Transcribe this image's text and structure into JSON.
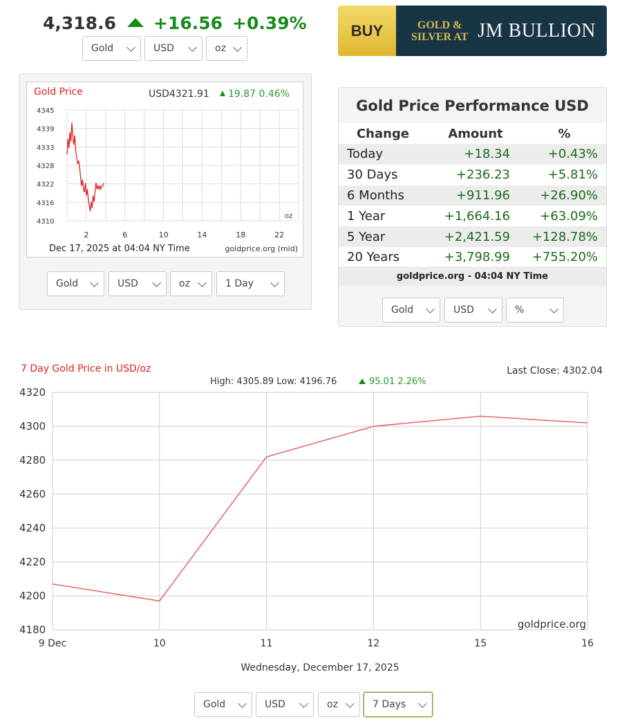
{
  "header": {
    "price": "4,318.6",
    "change": "+16.56",
    "change_pct": "+0.39%",
    "selectors": [
      "Gold",
      "USD",
      "oz"
    ]
  },
  "banner": {
    "buy": "BUY",
    "line1": "Gold &",
    "line2": "Silver At",
    "brand": "JM Bullion"
  },
  "mini_chart": {
    "title": "Gold Price",
    "quote": "USD4321.91",
    "change": "19.87 0.46%",
    "unit": "oz",
    "timestamp": "Dec 17, 2025 at 04:04 NY Time",
    "source": "goldprice.org (mid)",
    "selectors": [
      "Gold",
      "USD",
      "oz",
      "1 Day"
    ]
  },
  "performance": {
    "title": "Gold Price Performance USD",
    "headers": [
      "Change",
      "Amount",
      "%"
    ],
    "rows": [
      [
        "Today",
        "+18.34",
        "+0.43%"
      ],
      [
        "30 Days",
        "+236.23",
        "+5.81%"
      ],
      [
        "6 Months",
        "+911.96",
        "+26.90%"
      ],
      [
        "1 Year",
        "+1,664.16",
        "+63.09%"
      ],
      [
        "5 Year",
        "+2,421.59",
        "+128.78%"
      ],
      [
        "20 Years",
        "+3,798.99",
        "+755.20%"
      ]
    ],
    "footer": "goldprice.org - 04:04 NY Time",
    "selectors": [
      "Gold",
      "USD",
      "%"
    ]
  },
  "big_chart": {
    "title": "7 Day Gold Price in USD/oz",
    "last_close": "Last Close: 4302.04",
    "stats_prefix": "High: 4305.89 Low: 4196.76",
    "stats_change": "95.01 2.26%",
    "watermark": "goldprice.org",
    "date_caption": "Wednesday, December 17, 2025",
    "selectors": [
      "Gold",
      "USD",
      "oz",
      "7 Days"
    ]
  },
  "chart_data": [
    {
      "type": "line",
      "title": "Gold Price",
      "x_ticks": [
        "2",
        "6",
        "10",
        "14",
        "18",
        "22"
      ],
      "y_ticks": [
        "4345",
        "4339",
        "4333",
        "4328",
        "4322",
        "4316",
        "4310"
      ],
      "ylim": [
        4310,
        4345
      ],
      "xlim": [
        0,
        24
      ],
      "series": [
        {
          "color": "#e02020",
          "x": [
            0.0,
            0.1,
            0.2,
            0.3,
            0.4,
            0.5,
            0.6,
            0.7,
            0.8,
            0.9,
            1.0,
            1.1,
            1.2,
            1.3,
            1.4,
            1.5,
            1.6,
            1.7,
            1.8,
            1.9,
            2.0,
            2.1,
            2.2,
            2.3,
            2.4,
            2.5,
            2.6,
            2.7,
            2.8,
            2.9,
            3.0,
            3.1,
            3.2,
            3.3,
            3.4,
            3.5,
            3.6,
            3.7,
            3.8
          ],
          "y": [
            4331,
            4336,
            4333,
            4338,
            4335,
            4341,
            4337,
            4334,
            4337,
            4332,
            4330,
            4328,
            4329,
            4327,
            4324,
            4321,
            4323,
            4320,
            4319,
            4322,
            4318,
            4320,
            4317,
            4315,
            4313,
            4316,
            4314,
            4318,
            4316,
            4319,
            4322,
            4320,
            4321,
            4320,
            4321,
            4320,
            4321,
            4321,
            4322
          ]
        }
      ],
      "grid": true
    },
    {
      "type": "line",
      "title": "7 Day Gold Price in USD/oz",
      "categories": [
        "9 Dec",
        "10",
        "11",
        "12",
        "15",
        "16"
      ],
      "x_index": [
        0,
        1,
        2,
        3,
        4,
        5
      ],
      "y_ticks": [
        4320,
        4300,
        4280,
        4260,
        4240,
        4220,
        4200,
        4180
      ],
      "ylim": [
        4180,
        4320
      ],
      "series": [
        {
          "color": "#e05a5a",
          "values": [
            4207,
            4197,
            4282,
            4300,
            4306,
            4302
          ]
        }
      ],
      "grid": true
    }
  ]
}
